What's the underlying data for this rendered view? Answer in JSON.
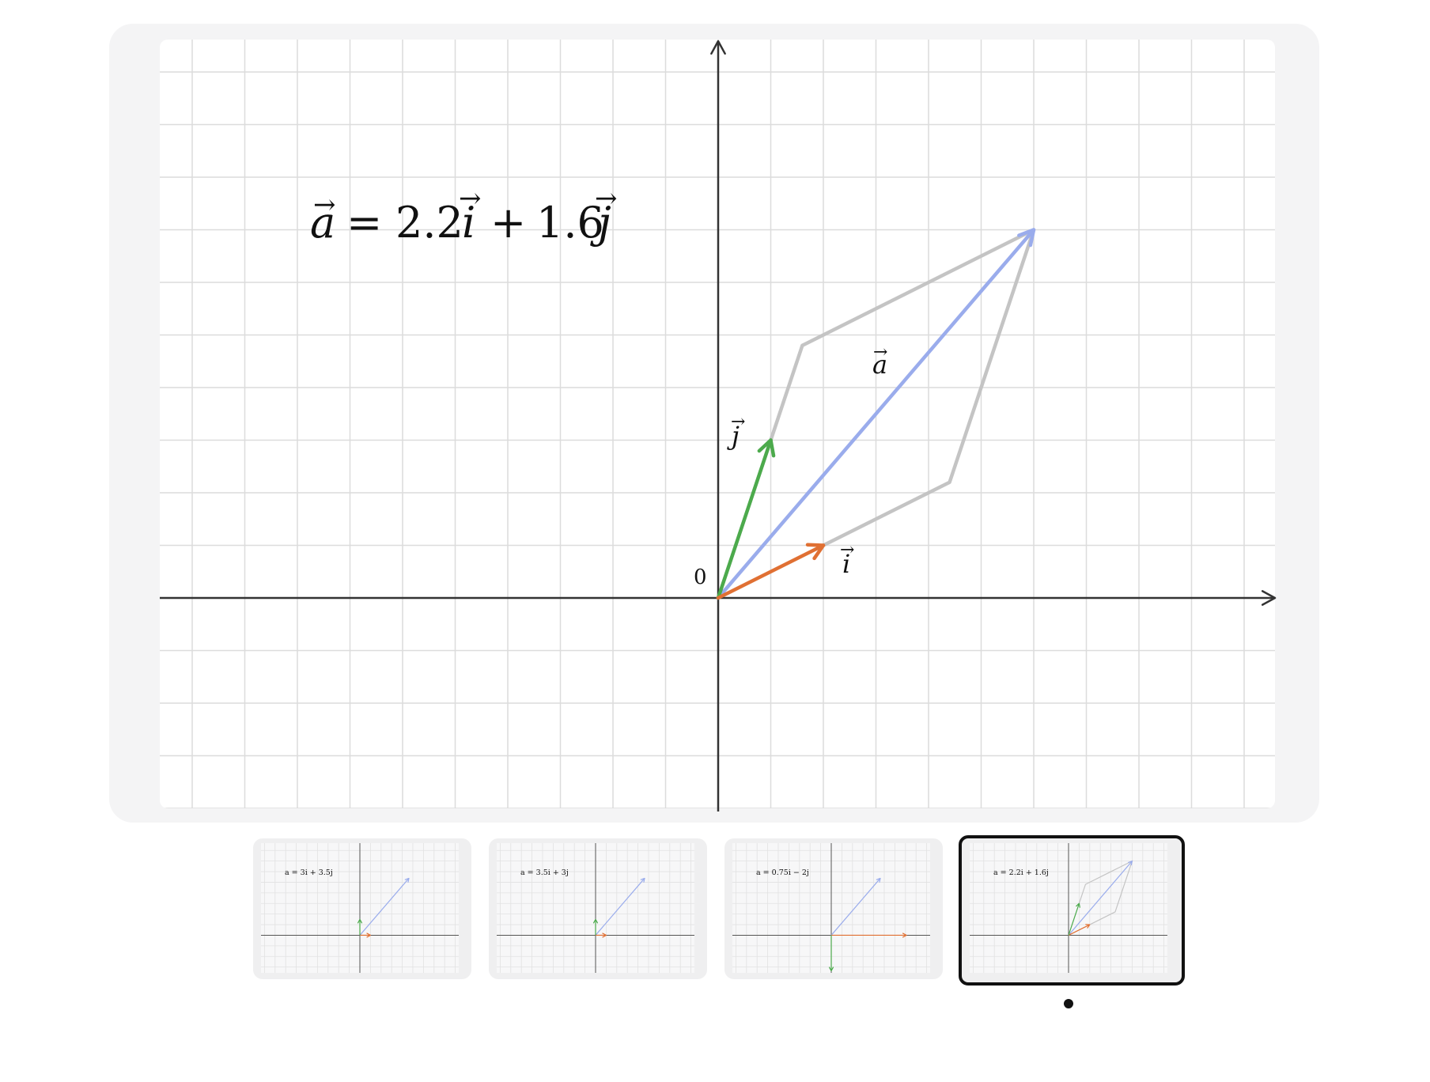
{
  "diagram": {
    "equation": {
      "a": "a",
      "eq": "=",
      "ci": "2.2",
      "i": "i",
      "plus": "+",
      "cj": "1.6",
      "j": "j"
    },
    "origin_label": "0",
    "vector_labels": {
      "a": "a",
      "i": "i",
      "j": "j"
    },
    "basis": {
      "i": [
        2,
        1
      ],
      "j": [
        1,
        3
      ]
    },
    "coefficients": {
      "i": 2.2,
      "j": 1.6
    },
    "colors": {
      "a": "#9aacec",
      "i": "#e07033",
      "j": "#4caa4c",
      "parallelogram": "#c4c4c4",
      "axes": "#333333",
      "grid": "#dcdcdc"
    },
    "grid_on": true
  },
  "thumbnails": [
    {
      "label": "a = 3i + 3.5j",
      "ci": "3",
      "cj": "3.5",
      "basis": {
        "i": [
          1,
          0
        ],
        "j": [
          0,
          1
        ]
      },
      "coef": [
        3,
        3.5
      ],
      "active": false
    },
    {
      "label": "a = 3.5i + 3j",
      "ci": "3.5",
      "cj": "3",
      "basis": {
        "i": [
          1,
          0
        ],
        "j": [
          0,
          1
        ]
      },
      "coef": [
        3.5,
        3
      ],
      "active": false
    },
    {
      "label": "a = 0.75i − 2j",
      "ci": "0.75",
      "cj": "−2",
      "basis": {
        "i": [
          4,
          0
        ],
        "j": [
          0,
          -1.5
        ]
      },
      "coef": [
        0.75,
        -2
      ],
      "active": false
    },
    {
      "label": "a = 2.2i + 1.6j",
      "ci": "2.2",
      "cj": "1.6",
      "basis": {
        "i": [
          2,
          1
        ],
        "j": [
          1,
          3
        ]
      },
      "coef": [
        2.2,
        1.6
      ],
      "active": true
    }
  ]
}
